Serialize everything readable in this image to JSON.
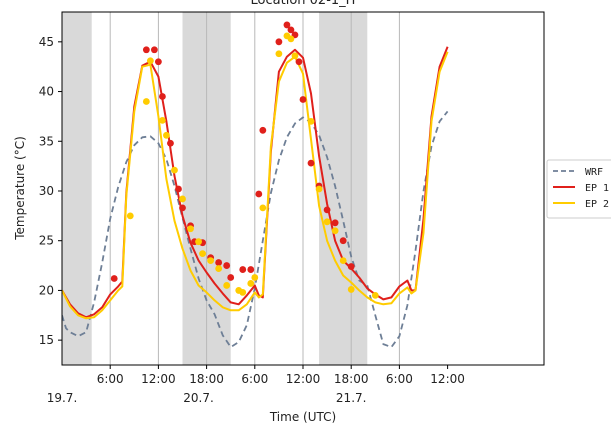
{
  "chart_data": {
    "type": "line",
    "title": "Location 02-1_H",
    "xlabel": "Time (UTC)",
    "ylabel": "Temperature (°C)",
    "x_unit": "hours from 19.7. 00:00 UTC",
    "xlim": [
      0,
      60
    ],
    "ylim": [
      12.5,
      48
    ],
    "yticks": [
      15,
      20,
      25,
      30,
      35,
      40,
      45
    ],
    "xticks": [
      {
        "x": 6,
        "label": "6:00"
      },
      {
        "x": 12,
        "label": "12:00"
      },
      {
        "x": 18,
        "label": "18:00"
      },
      {
        "x": 24,
        "label": "6:00"
      },
      {
        "x": 30,
        "label": "12:00"
      },
      {
        "x": 36,
        "label": "18:00"
      },
      {
        "x": 42,
        "label": "6:00"
      },
      {
        "x": 48,
        "label": "12:00"
      }
    ],
    "date_labels": [
      {
        "x": 0,
        "label": "19.7."
      },
      {
        "x": 17,
        "label": "20.7."
      },
      {
        "x": 36,
        "label": "21.7."
      }
    ],
    "vgrid_x": [
      6,
      12,
      18,
      24,
      30,
      36,
      42
    ],
    "shaded_x_ranges": [
      [
        0,
        3.7
      ],
      [
        15,
        21
      ],
      [
        32,
        38
      ]
    ],
    "series": [
      {
        "name": "WRF",
        "style": "dashed",
        "color": "#6e7f96",
        "x": [
          0,
          0.5,
          1,
          2,
          3,
          4,
          5,
          6,
          7,
          8,
          9,
          10,
          11,
          12,
          13,
          14,
          15,
          16,
          17,
          18,
          19,
          20,
          21,
          22,
          23,
          24,
          25,
          26,
          27,
          28,
          29,
          30,
          31,
          32,
          33,
          34,
          35,
          36,
          37,
          38,
          39,
          40,
          41,
          42,
          43,
          44,
          45,
          46,
          47,
          48
        ],
        "y": [
          17.5,
          16.2,
          15.8,
          15.4,
          15.8,
          18.8,
          22.8,
          27.2,
          30.4,
          32.9,
          34.6,
          35.4,
          35.5,
          34.8,
          33.2,
          30.5,
          27.3,
          24.2,
          21.2,
          19.0,
          17.6,
          15.5,
          14.3,
          14.8,
          16.5,
          20.2,
          25.0,
          29.8,
          33.1,
          35.4,
          36.8,
          37.4,
          36.9,
          35.6,
          33.4,
          30.5,
          27.0,
          23.4,
          21.0,
          20.5,
          17.5,
          14.6,
          14.3,
          15.4,
          18.5,
          24.0,
          30.0,
          34.5,
          37.0,
          38.0
        ]
      },
      {
        "name": "EP 1",
        "style": "solid",
        "color": "#e0201b",
        "x": [
          0,
          1,
          2,
          3,
          4,
          5,
          6,
          7,
          7.5,
          8,
          9,
          10,
          11,
          12,
          13,
          14,
          15,
          16,
          17,
          18,
          19,
          20,
          21,
          22,
          23,
          24,
          24.5,
          25,
          26,
          27,
          28,
          29,
          30,
          31,
          32,
          33,
          34,
          35,
          36,
          37,
          38,
          39,
          40,
          41,
          42,
          43,
          43.5,
          44,
          45,
          46,
          47,
          48
        ],
        "y": [
          20.0,
          18.6,
          17.7,
          17.3,
          17.6,
          18.3,
          19.6,
          20.4,
          20.9,
          29.8,
          38.5,
          42.6,
          43.0,
          41.5,
          37.0,
          31.5,
          27.5,
          24.8,
          23.0,
          21.8,
          20.7,
          19.7,
          18.8,
          18.6,
          19.5,
          20.5,
          19.5,
          19.3,
          34.0,
          42.0,
          43.5,
          44.2,
          43.4,
          39.8,
          33.5,
          28.7,
          25.0,
          23.0,
          22.2,
          21.3,
          20.2,
          19.6,
          19.1,
          19.3,
          20.4,
          21.0,
          20.0,
          20.0,
          27.2,
          37.5,
          42.5,
          44.5
        ]
      },
      {
        "name": "EP 2",
        "style": "solid",
        "color": "#ffcc00",
        "x": [
          0,
          1,
          2,
          3,
          4,
          5,
          6,
          7,
          7.5,
          8,
          9,
          10,
          11,
          12,
          13,
          14,
          15,
          16,
          17,
          18,
          19,
          20,
          21,
          22,
          23,
          24,
          24.5,
          25,
          26,
          27,
          28,
          29,
          30,
          31,
          32,
          33,
          34,
          35,
          36,
          37,
          38,
          39,
          40,
          41,
          42,
          43,
          43.5,
          44,
          45,
          46,
          47,
          48
        ],
        "y": [
          20.0,
          18.4,
          17.5,
          17.2,
          17.3,
          18.0,
          19.0,
          20.0,
          20.4,
          29.5,
          38.0,
          42.5,
          42.7,
          37.5,
          31.2,
          27.0,
          24.2,
          22.0,
          20.5,
          19.8,
          19.0,
          18.3,
          18.0,
          18.0,
          18.6,
          19.8,
          19.3,
          19.6,
          34.5,
          41.0,
          42.9,
          43.5,
          41.8,
          35.2,
          28.5,
          25.0,
          23.0,
          21.5,
          20.8,
          20.0,
          19.3,
          18.8,
          18.6,
          18.7,
          19.7,
          20.3,
          19.7,
          20.0,
          25.8,
          37.0,
          42.0,
          44.0
        ]
      }
    ],
    "point_series": [
      {
        "name": "EP 1 points",
        "color": "#e0201b",
        "x": [
          6.5,
          10.5,
          11.5,
          12,
          12.5,
          13.5,
          14.5,
          15,
          16,
          16.5,
          17.5,
          18.5,
          19.5,
          20.5,
          21,
          22.5,
          23.5,
          24.5,
          25,
          27,
          28,
          28.5,
          29,
          29.5,
          30,
          31,
          32,
          33,
          34,
          35,
          36
        ],
        "y": [
          21.2,
          44.2,
          44.2,
          43.0,
          39.5,
          34.8,
          30.2,
          28.3,
          26.5,
          24.9,
          24.8,
          23.3,
          22.8,
          22.5,
          21.3,
          22.1,
          22.1,
          29.7,
          36.1,
          45.0,
          46.7,
          46.2,
          45.7,
          43.0,
          39.2,
          32.8,
          30.5,
          28.1,
          26.8,
          25.0,
          22.4
        ]
      },
      {
        "name": "EP 2 points",
        "color": "#ffcc00",
        "x": [
          8.5,
          10.5,
          11,
          12.5,
          13,
          14,
          15,
          16,
          17,
          17.5,
          18.5,
          19.5,
          20.5,
          22,
          22.5,
          23.5,
          24,
          25,
          27,
          28,
          28.5,
          29,
          31,
          32,
          33,
          34,
          35,
          36,
          39
        ],
        "y": [
          27.5,
          39.0,
          43.1,
          37.1,
          35.6,
          32.1,
          29.2,
          26.2,
          24.9,
          23.7,
          23.0,
          22.2,
          20.5,
          20.0,
          19.8,
          20.7,
          21.3,
          28.3,
          43.8,
          45.6,
          45.3,
          43.6,
          37.0,
          30.2,
          26.9,
          26.0,
          23.0,
          20.1,
          19.5
        ]
      }
    ],
    "legend": {
      "placement": "outside-right",
      "entries": [
        {
          "label": "WRF",
          "color": "#6e7f96",
          "style": "dashed"
        },
        {
          "label": "EP 1",
          "color": "#e0201b",
          "style": "solid"
        },
        {
          "label": "EP 2",
          "color": "#ffcc00",
          "style": "solid"
        }
      ]
    },
    "colors": {
      "shade": "#d9d9d9",
      "grid": "#b8b8b8",
      "axis": "#000000"
    }
  }
}
